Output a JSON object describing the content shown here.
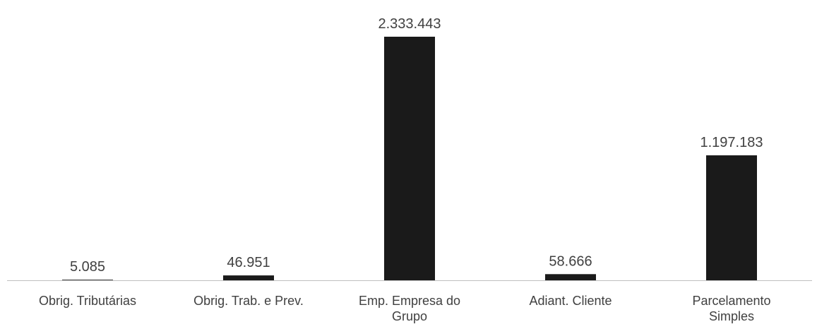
{
  "chart_data": {
    "type": "bar",
    "categories": [
      [
        "Obrig. Tributárias"
      ],
      [
        "Obrig. Trab. e Prev."
      ],
      [
        "Emp. Empresa do",
        "Grupo"
      ],
      [
        "Adiant. Cliente"
      ],
      [
        "Parcelamento",
        "Simples"
      ]
    ],
    "values": [
      5085,
      46951,
      2333443,
      58666,
      1197183
    ],
    "data_labels": [
      "5.085",
      "46.951",
      "2.333.443",
      "58.666",
      "1.197.183"
    ],
    "title": "",
    "xlabel": "",
    "ylabel": "",
    "ylim": [
      0,
      2333443
    ],
    "grid": false,
    "legend": "none",
    "colors": {
      "bar": "#1a1a1a",
      "axis": "#bfbfbf",
      "text": "#404040"
    }
  }
}
